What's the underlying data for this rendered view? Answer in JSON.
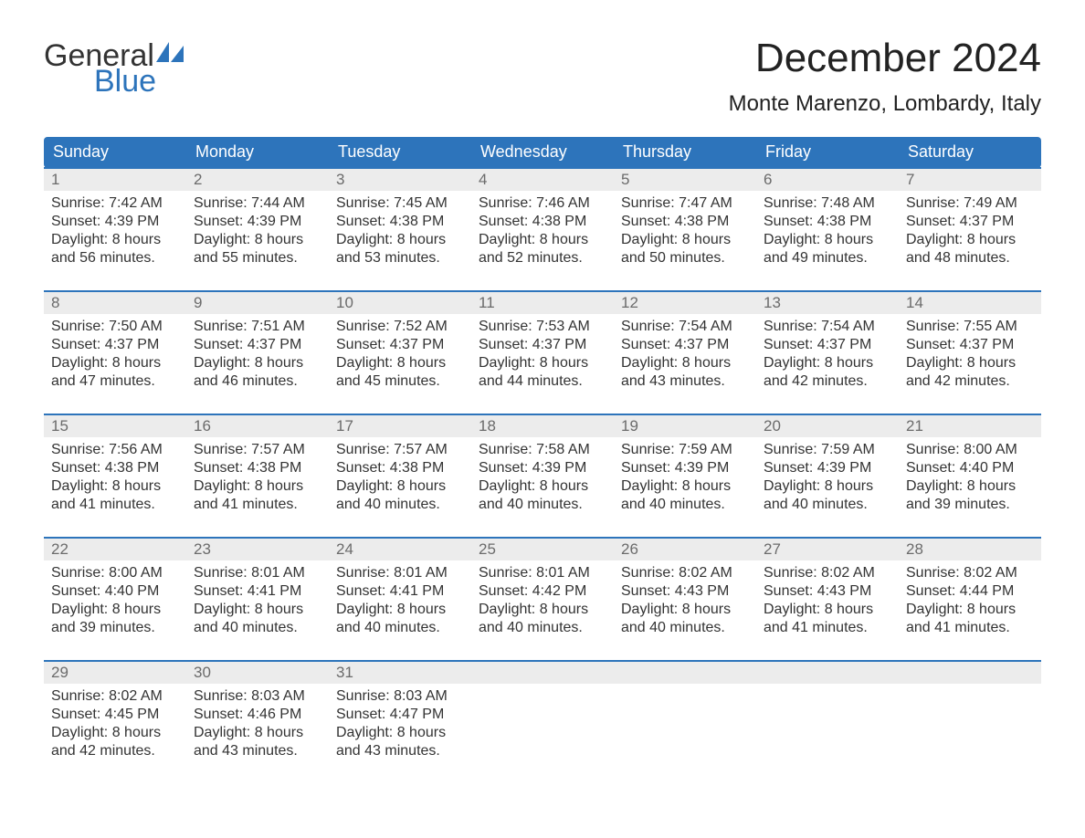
{
  "brand": {
    "word1": "General",
    "word2": "Blue",
    "text_color": "#333333",
    "accent_color": "#2d74bb"
  },
  "title": "December 2024",
  "location": "Monte Marenzo, Lombardy, Italy",
  "day_headers": [
    "Sunday",
    "Monday",
    "Tuesday",
    "Wednesday",
    "Thursday",
    "Friday",
    "Saturday"
  ],
  "colors": {
    "header_bg": "#2d74bb",
    "header_text": "#ffffff",
    "row_divider": "#2d74bb",
    "daynum_bg": "#ececec",
    "daynum_text": "#6b6b6b",
    "body_text": "#333333",
    "page_bg": "#ffffff"
  },
  "typography": {
    "title_fontsize": 44,
    "location_fontsize": 24,
    "header_fontsize": 18,
    "daynum_fontsize": 17,
    "cell_fontsize": 16
  },
  "weeks": [
    [
      {
        "day": "1",
        "sunrise": "7:42 AM",
        "sunset": "4:39 PM",
        "daylight1": "Daylight: 8 hours",
        "daylight2": "and 56 minutes."
      },
      {
        "day": "2",
        "sunrise": "7:44 AM",
        "sunset": "4:39 PM",
        "daylight1": "Daylight: 8 hours",
        "daylight2": "and 55 minutes."
      },
      {
        "day": "3",
        "sunrise": "7:45 AM",
        "sunset": "4:38 PM",
        "daylight1": "Daylight: 8 hours",
        "daylight2": "and 53 minutes."
      },
      {
        "day": "4",
        "sunrise": "7:46 AM",
        "sunset": "4:38 PM",
        "daylight1": "Daylight: 8 hours",
        "daylight2": "and 52 minutes."
      },
      {
        "day": "5",
        "sunrise": "7:47 AM",
        "sunset": "4:38 PM",
        "daylight1": "Daylight: 8 hours",
        "daylight2": "and 50 minutes."
      },
      {
        "day": "6",
        "sunrise": "7:48 AM",
        "sunset": "4:38 PM",
        "daylight1": "Daylight: 8 hours",
        "daylight2": "and 49 minutes."
      },
      {
        "day": "7",
        "sunrise": "7:49 AM",
        "sunset": "4:37 PM",
        "daylight1": "Daylight: 8 hours",
        "daylight2": "and 48 minutes."
      }
    ],
    [
      {
        "day": "8",
        "sunrise": "7:50 AM",
        "sunset": "4:37 PM",
        "daylight1": "Daylight: 8 hours",
        "daylight2": "and 47 minutes."
      },
      {
        "day": "9",
        "sunrise": "7:51 AM",
        "sunset": "4:37 PM",
        "daylight1": "Daylight: 8 hours",
        "daylight2": "and 46 minutes."
      },
      {
        "day": "10",
        "sunrise": "7:52 AM",
        "sunset": "4:37 PM",
        "daylight1": "Daylight: 8 hours",
        "daylight2": "and 45 minutes."
      },
      {
        "day": "11",
        "sunrise": "7:53 AM",
        "sunset": "4:37 PM",
        "daylight1": "Daylight: 8 hours",
        "daylight2": "and 44 minutes."
      },
      {
        "day": "12",
        "sunrise": "7:54 AM",
        "sunset": "4:37 PM",
        "daylight1": "Daylight: 8 hours",
        "daylight2": "and 43 minutes."
      },
      {
        "day": "13",
        "sunrise": "7:54 AM",
        "sunset": "4:37 PM",
        "daylight1": "Daylight: 8 hours",
        "daylight2": "and 42 minutes."
      },
      {
        "day": "14",
        "sunrise": "7:55 AM",
        "sunset": "4:37 PM",
        "daylight1": "Daylight: 8 hours",
        "daylight2": "and 42 minutes."
      }
    ],
    [
      {
        "day": "15",
        "sunrise": "7:56 AM",
        "sunset": "4:38 PM",
        "daylight1": "Daylight: 8 hours",
        "daylight2": "and 41 minutes."
      },
      {
        "day": "16",
        "sunrise": "7:57 AM",
        "sunset": "4:38 PM",
        "daylight1": "Daylight: 8 hours",
        "daylight2": "and 41 minutes."
      },
      {
        "day": "17",
        "sunrise": "7:57 AM",
        "sunset": "4:38 PM",
        "daylight1": "Daylight: 8 hours",
        "daylight2": "and 40 minutes."
      },
      {
        "day": "18",
        "sunrise": "7:58 AM",
        "sunset": "4:39 PM",
        "daylight1": "Daylight: 8 hours",
        "daylight2": "and 40 minutes."
      },
      {
        "day": "19",
        "sunrise": "7:59 AM",
        "sunset": "4:39 PM",
        "daylight1": "Daylight: 8 hours",
        "daylight2": "and 40 minutes."
      },
      {
        "day": "20",
        "sunrise": "7:59 AM",
        "sunset": "4:39 PM",
        "daylight1": "Daylight: 8 hours",
        "daylight2": "and 40 minutes."
      },
      {
        "day": "21",
        "sunrise": "8:00 AM",
        "sunset": "4:40 PM",
        "daylight1": "Daylight: 8 hours",
        "daylight2": "and 39 minutes."
      }
    ],
    [
      {
        "day": "22",
        "sunrise": "8:00 AM",
        "sunset": "4:40 PM",
        "daylight1": "Daylight: 8 hours",
        "daylight2": "and 39 minutes."
      },
      {
        "day": "23",
        "sunrise": "8:01 AM",
        "sunset": "4:41 PM",
        "daylight1": "Daylight: 8 hours",
        "daylight2": "and 40 minutes."
      },
      {
        "day": "24",
        "sunrise": "8:01 AM",
        "sunset": "4:41 PM",
        "daylight1": "Daylight: 8 hours",
        "daylight2": "and 40 minutes."
      },
      {
        "day": "25",
        "sunrise": "8:01 AM",
        "sunset": "4:42 PM",
        "daylight1": "Daylight: 8 hours",
        "daylight2": "and 40 minutes."
      },
      {
        "day": "26",
        "sunrise": "8:02 AM",
        "sunset": "4:43 PM",
        "daylight1": "Daylight: 8 hours",
        "daylight2": "and 40 minutes."
      },
      {
        "day": "27",
        "sunrise": "8:02 AM",
        "sunset": "4:43 PM",
        "daylight1": "Daylight: 8 hours",
        "daylight2": "and 41 minutes."
      },
      {
        "day": "28",
        "sunrise": "8:02 AM",
        "sunset": "4:44 PM",
        "daylight1": "Daylight: 8 hours",
        "daylight2": "and 41 minutes."
      }
    ],
    [
      {
        "day": "29",
        "sunrise": "8:02 AM",
        "sunset": "4:45 PM",
        "daylight1": "Daylight: 8 hours",
        "daylight2": "and 42 minutes."
      },
      {
        "day": "30",
        "sunrise": "8:03 AM",
        "sunset": "4:46 PM",
        "daylight1": "Daylight: 8 hours",
        "daylight2": "and 43 minutes."
      },
      {
        "day": "31",
        "sunrise": "8:03 AM",
        "sunset": "4:47 PM",
        "daylight1": "Daylight: 8 hours",
        "daylight2": "and 43 minutes."
      },
      null,
      null,
      null,
      null
    ]
  ],
  "labels": {
    "sunrise_prefix": "Sunrise: ",
    "sunset_prefix": "Sunset: "
  }
}
